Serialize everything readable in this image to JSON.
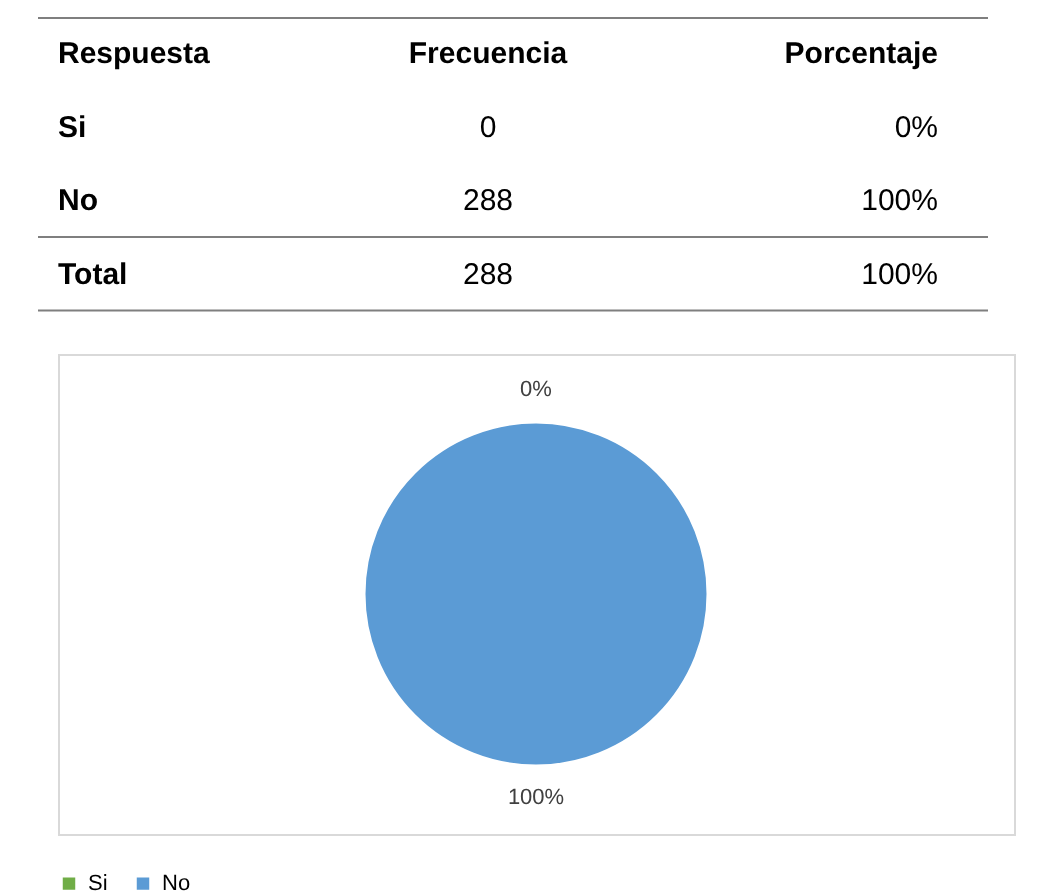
{
  "chart_data": [
    {
      "type": "other",
      "annotations": [
        "Respuesta",
        "Frecuencia",
        "Porcentaje",
        "Si",
        "0",
        "0%",
        "No",
        "288",
        "100%",
        "Total",
        "288",
        "100%"
      ]
    },
    {
      "type": "pie",
      "categories": [
        "Si",
        "No"
      ],
      "values": [
        0,
        100
      ],
      "colors": [
        "#70ad47",
        "#5b9bd5"
      ],
      "value_labels": [
        "0%",
        "100%"
      ],
      "legend": "bottom"
    }
  ]
}
